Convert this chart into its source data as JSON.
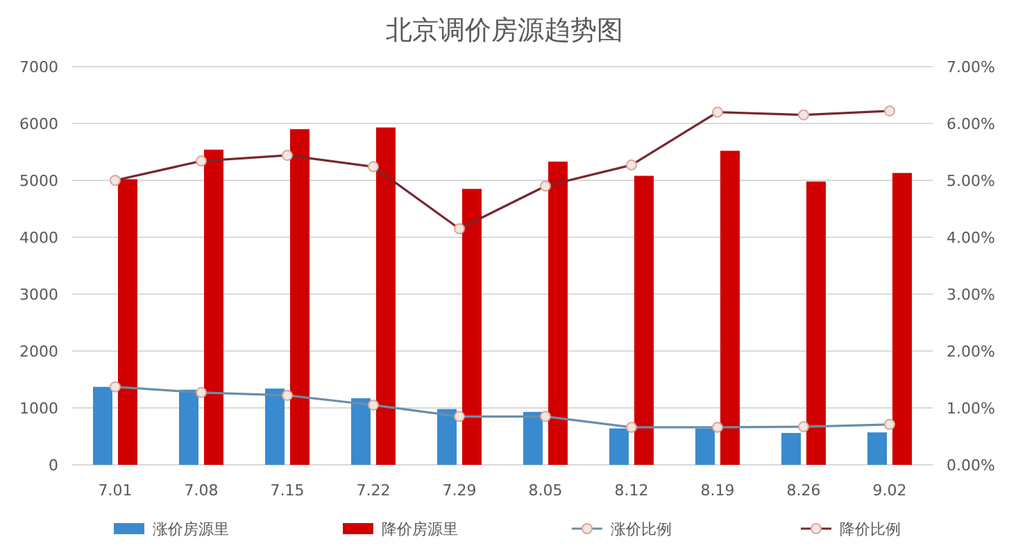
{
  "chart_data": {
    "type": "bar",
    "title": "北京调价房源趋势图",
    "categories": [
      "7.01",
      "7.08",
      "7.15",
      "7.22",
      "7.29",
      "8.05",
      "8.12",
      "8.19",
      "8.26",
      "9.02"
    ],
    "series": [
      {
        "name": "涨价房源里",
        "color": "#3a8ad0",
        "values": [
          1370,
          1320,
          1340,
          1170,
          980,
          930,
          640,
          640,
          560,
          570
        ]
      },
      {
        "name": "降价房源里",
        "color": "#d00000",
        "values": [
          5020,
          5540,
          5900,
          5930,
          4850,
          5330,
          5080,
          5520,
          4980,
          5130
        ]
      },
      {
        "name": "涨价比例",
        "type": "line",
        "axis": "y2",
        "color": "#6a8fa8",
        "values": [
          1.37,
          1.27,
          1.22,
          1.05,
          0.85,
          0.85,
          0.66,
          0.66,
          0.67,
          0.71
        ]
      },
      {
        "name": "降价比例",
        "type": "line",
        "axis": "y2",
        "color": "#7a2630",
        "values": [
          5.0,
          5.34,
          5.44,
          5.24,
          4.15,
          4.9,
          5.27,
          6.2,
          6.15,
          6.22
        ]
      }
    ],
    "ylim": [
      0,
      7000
    ],
    "yticks": [
      0,
      1000,
      2000,
      3000,
      4000,
      5000,
      6000,
      7000
    ],
    "y2lim": [
      0,
      7
    ],
    "y2ticks": [
      {
        "value": 0,
        "label": "0.00%"
      },
      {
        "value": 1,
        "label": "1.00%"
      },
      {
        "value": 2,
        "label": "2.00%"
      },
      {
        "value": 3,
        "label": "3.00%"
      },
      {
        "value": 4,
        "label": "4.00%"
      },
      {
        "value": 5,
        "label": "5.00%"
      },
      {
        "value": 6,
        "label": "6.00%"
      },
      {
        "value": 7,
        "label": "7.00%"
      }
    ],
    "grid": "y",
    "legend": "bottom",
    "marker": "circle"
  }
}
